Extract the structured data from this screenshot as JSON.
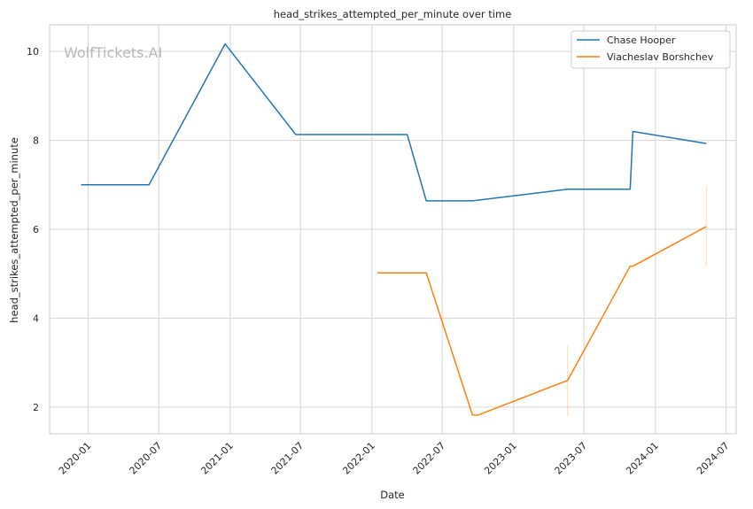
{
  "chart_data": {
    "type": "line",
    "title": "head_strikes_attempted_per_minute over time",
    "xlabel": "Date",
    "ylabel": "head_strikes_attempted_per_minute",
    "watermark": "WolfTickets.AI",
    "x_ticks": [
      "2020-01",
      "2020-07",
      "2021-01",
      "2021-07",
      "2022-01",
      "2022-07",
      "2023-01",
      "2023-07",
      "2024-01",
      "2024-07"
    ],
    "y_ticks": [
      2,
      4,
      6,
      8,
      10
    ],
    "xlim": [
      "2019-09-24",
      "2024-07-27"
    ],
    "ylim": [
      1.4,
      10.6
    ],
    "grid": true,
    "legend_position": "top-right",
    "series": [
      {
        "name": "Chase Hooper",
        "color": "#1f77b4",
        "points": [
          [
            "2019-12-14",
            7.0
          ],
          [
            "2020-06-06",
            7.0
          ],
          [
            "2020-12-19",
            10.17
          ],
          [
            "2021-06-19",
            8.13
          ],
          [
            "2022-04-02",
            8.13
          ],
          [
            "2022-05-21",
            6.64
          ],
          [
            "2022-09-17",
            6.64
          ],
          [
            "2023-05-20",
            6.9
          ],
          [
            "2023-10-28",
            6.9
          ],
          [
            "2023-11-04",
            8.2
          ],
          [
            "2024-05-11",
            7.93
          ]
        ]
      },
      {
        "name": "Viacheslav Borshchev",
        "color": "#ff7f0e",
        "points": [
          [
            "2022-01-15",
            5.02
          ],
          [
            "2022-05-21",
            5.02
          ],
          [
            "2022-09-17",
            1.82
          ],
          [
            "2022-10-01",
            1.82
          ],
          [
            "2023-05-20",
            2.6
          ],
          [
            "2023-10-28",
            5.17
          ],
          [
            "2023-11-04",
            5.17
          ],
          [
            "2024-05-11",
            6.06
          ]
        ],
        "error_bars": [
          {
            "x": "2023-05-20",
            "low": 1.8,
            "high": 3.4
          },
          {
            "x": "2024-05-11",
            "low": 5.15,
            "high": 6.98
          }
        ]
      }
    ]
  }
}
